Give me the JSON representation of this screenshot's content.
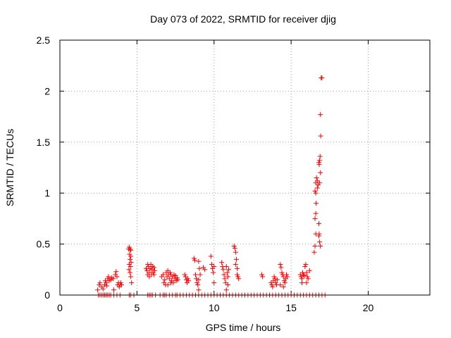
{
  "chart_data": {
    "type": "scatter",
    "title": "Day 073 of 2022, SRMTID for receiver djig",
    "xlabel": "GPS time / hours",
    "ylabel": "SRMTID / TECUs",
    "xlim": [
      0,
      24
    ],
    "ylim": [
      0,
      2.5
    ],
    "xticks": [
      0,
      5,
      10,
      15,
      20
    ],
    "xtick_labels": [
      "0",
      "5",
      "10",
      "15",
      "20"
    ],
    "yticks": [
      0,
      0.5,
      1,
      1.5,
      2,
      2.5
    ],
    "ytick_labels": [
      "0",
      "0.5",
      "1",
      "1.5",
      "2",
      "2.5"
    ],
    "grid": true,
    "marker": "+",
    "color": "#ff0000",
    "series": [
      {
        "name": "SRMTID",
        "points": [
          [
            2.5,
            0
          ],
          [
            2.6,
            0
          ],
          [
            2.7,
            0
          ],
          [
            2.8,
            0
          ],
          [
            2.9,
            0
          ],
          [
            3.0,
            0
          ],
          [
            3.1,
            0
          ],
          [
            3.2,
            0
          ],
          [
            3.3,
            0
          ],
          [
            3.5,
            0
          ],
          [
            3.7,
            0
          ],
          [
            3.9,
            0
          ],
          [
            4.5,
            0
          ],
          [
            4.6,
            0
          ],
          [
            4.8,
            0
          ],
          [
            5.7,
            0
          ],
          [
            5.8,
            0
          ],
          [
            5.9,
            0
          ],
          [
            6.0,
            0
          ],
          [
            6.2,
            0
          ],
          [
            6.5,
            0
          ],
          [
            6.7,
            0
          ],
          [
            6.8,
            0
          ],
          [
            6.9,
            0
          ],
          [
            7.1,
            0
          ],
          [
            7.3,
            0
          ],
          [
            7.5,
            0
          ],
          [
            7.6,
            0
          ],
          [
            7.8,
            0
          ],
          [
            8.0,
            0
          ],
          [
            8.2,
            0
          ],
          [
            8.4,
            0
          ],
          [
            8.6,
            0
          ],
          [
            8.8,
            0
          ],
          [
            9.0,
            0
          ],
          [
            9.2,
            0
          ],
          [
            9.4,
            0
          ],
          [
            9.6,
            0
          ],
          [
            9.8,
            0
          ],
          [
            10.0,
            0
          ],
          [
            10.2,
            0
          ],
          [
            10.4,
            0
          ],
          [
            10.6,
            0
          ],
          [
            10.8,
            0
          ],
          [
            11.0,
            0
          ],
          [
            11.2,
            0
          ],
          [
            11.4,
            0
          ],
          [
            11.6,
            0
          ],
          [
            11.8,
            0
          ],
          [
            12.0,
            0
          ],
          [
            12.2,
            0
          ],
          [
            12.4,
            0
          ],
          [
            12.6,
            0
          ],
          [
            12.8,
            0
          ],
          [
            13.0,
            0
          ],
          [
            13.2,
            0
          ],
          [
            13.4,
            0
          ],
          [
            13.6,
            0
          ],
          [
            13.8,
            0
          ],
          [
            14.0,
            0
          ],
          [
            14.2,
            0
          ],
          [
            14.4,
            0
          ],
          [
            14.6,
            0
          ],
          [
            14.8,
            0
          ],
          [
            15.0,
            0
          ],
          [
            15.2,
            0
          ],
          [
            15.4,
            0
          ],
          [
            15.6,
            0
          ],
          [
            15.8,
            0
          ],
          [
            16.0,
            0
          ],
          [
            16.2,
            0
          ],
          [
            16.4,
            0
          ],
          [
            16.6,
            0
          ],
          [
            16.8,
            0
          ],
          [
            17.0,
            0
          ],
          [
            17.2,
            0
          ],
          [
            2.45,
            0.05
          ],
          [
            2.55,
            0.1
          ],
          [
            2.6,
            0.12
          ],
          [
            2.7,
            0.08
          ],
          [
            2.8,
            0.06
          ],
          [
            2.9,
            0.1
          ],
          [
            2.95,
            0.14
          ],
          [
            3.0,
            0.12
          ],
          [
            3.05,
            0.09
          ],
          [
            3.1,
            0.16
          ],
          [
            3.15,
            0.18
          ],
          [
            3.2,
            0.14
          ],
          [
            3.3,
            0.15
          ],
          [
            3.35,
            0.17
          ],
          [
            3.45,
            0.16
          ],
          [
            3.5,
            0.05
          ],
          [
            3.6,
            0.2
          ],
          [
            3.65,
            0.23
          ],
          [
            3.7,
            0.18
          ],
          [
            3.75,
            0.1
          ],
          [
            3.8,
            0.12
          ],
          [
            3.85,
            0.08
          ],
          [
            3.9,
            0.1
          ],
          [
            3.95,
            0.12
          ],
          [
            4.0,
            0.1
          ],
          [
            4.45,
            0.45
          ],
          [
            4.5,
            0.47
          ],
          [
            4.52,
            0.4
          ],
          [
            4.55,
            0.35
          ],
          [
            4.5,
            0.3
          ],
          [
            4.48,
            0.25
          ],
          [
            4.55,
            0.22
          ],
          [
            4.6,
            0.44
          ],
          [
            4.6,
            0.38
          ],
          [
            4.62,
            0.32
          ],
          [
            4.58,
            0.28
          ],
          [
            4.6,
            0.18
          ],
          [
            4.65,
            0.12
          ],
          [
            4.55,
            0.45
          ],
          [
            5.6,
            0.26
          ],
          [
            5.65,
            0.24
          ],
          [
            5.7,
            0.3
          ],
          [
            5.75,
            0.28
          ],
          [
            5.8,
            0.22
          ],
          [
            5.85,
            0.26
          ],
          [
            5.9,
            0.3
          ],
          [
            5.95,
            0.25
          ],
          [
            6.0,
            0.28
          ],
          [
            6.05,
            0.22
          ],
          [
            6.1,
            0.27
          ],
          [
            6.15,
            0.24
          ],
          [
            5.7,
            0.2
          ],
          [
            5.8,
            0.18
          ],
          [
            5.95,
            0.2
          ],
          [
            6.1,
            0.2
          ],
          [
            6.6,
            0.18
          ],
          [
            6.7,
            0.2
          ],
          [
            6.8,
            0.15
          ],
          [
            6.85,
            0.1
          ],
          [
            6.9,
            0.22
          ],
          [
            6.95,
            0.18
          ],
          [
            7.0,
            0.24
          ],
          [
            7.05,
            0.2
          ],
          [
            7.1,
            0.16
          ],
          [
            7.15,
            0.22
          ],
          [
            7.2,
            0.2
          ],
          [
            7.25,
            0.14
          ],
          [
            7.3,
            0.18
          ],
          [
            7.35,
            0.12
          ],
          [
            7.4,
            0.2
          ],
          [
            7.45,
            0.16
          ],
          [
            7.5,
            0.19
          ],
          [
            7.55,
            0.14
          ],
          [
            7.6,
            0.17
          ],
          [
            7.65,
            0.15
          ],
          [
            6.75,
            0.12
          ],
          [
            7.0,
            0.1
          ],
          [
            7.2,
            0.12
          ],
          [
            8.1,
            0.2
          ],
          [
            8.15,
            0.18
          ],
          [
            8.2,
            0.15
          ],
          [
            8.25,
            0.12
          ],
          [
            8.3,
            0.16
          ],
          [
            8.35,
            0.14
          ],
          [
            8.7,
            0.36
          ],
          [
            8.75,
            0.34
          ],
          [
            8.8,
            0.2
          ],
          [
            8.85,
            0.16
          ],
          [
            8.9,
            0.12
          ],
          [
            8.95,
            0.1
          ],
          [
            9.0,
            0.33
          ],
          [
            9.05,
            0.26
          ],
          [
            9.1,
            0.2
          ],
          [
            9.0,
            0.05
          ],
          [
            9.0,
            0.15
          ],
          [
            9.3,
            0.27
          ],
          [
            9.4,
            0.25
          ],
          [
            9.8,
            0.38
          ],
          [
            9.85,
            0.3
          ],
          [
            9.9,
            0.26
          ],
          [
            9.95,
            0.22
          ],
          [
            10.0,
            0.28
          ],
          [
            10.0,
            0.12
          ],
          [
            10.5,
            0.32
          ],
          [
            10.55,
            0.28
          ],
          [
            10.6,
            0.25
          ],
          [
            10.65,
            0.2
          ],
          [
            10.7,
            0.16
          ],
          [
            10.75,
            0.12
          ],
          [
            10.8,
            0.28
          ],
          [
            10.85,
            0.22
          ],
          [
            10.9,
            0.18
          ],
          [
            10.95,
            0.25
          ],
          [
            10.8,
            0.05
          ],
          [
            10.9,
            0.1
          ],
          [
            11.3,
            0.48
          ],
          [
            11.35,
            0.46
          ],
          [
            11.4,
            0.42
          ],
          [
            11.45,
            0.35
          ],
          [
            11.4,
            0.3
          ],
          [
            11.5,
            0.26
          ],
          [
            11.5,
            0.2
          ],
          [
            11.55,
            0.18
          ],
          [
            11.6,
            0.16
          ],
          [
            13.1,
            0.2
          ],
          [
            13.15,
            0.18
          ],
          [
            13.7,
            0.12
          ],
          [
            13.75,
            0.1
          ],
          [
            13.8,
            0.08
          ],
          [
            13.85,
            0.14
          ],
          [
            13.9,
            0.18
          ],
          [
            13.95,
            0.16
          ],
          [
            14.0,
            0.12
          ],
          [
            14.05,
            0.1
          ],
          [
            14.1,
            0.15
          ],
          [
            14.3,
            0.3
          ],
          [
            14.35,
            0.27
          ],
          [
            14.4,
            0.22
          ],
          [
            14.45,
            0.2
          ],
          [
            14.5,
            0.18
          ],
          [
            14.55,
            0.14
          ],
          [
            14.6,
            0.12
          ],
          [
            14.65,
            0.16
          ],
          [
            14.7,
            0.2
          ],
          [
            14.75,
            0.18
          ],
          [
            14.3,
            0.1
          ],
          [
            14.5,
            0.08
          ],
          [
            15.6,
            0.2
          ],
          [
            15.65,
            0.18
          ],
          [
            15.7,
            0.16
          ],
          [
            15.75,
            0.22
          ],
          [
            15.8,
            0.2
          ],
          [
            15.85,
            0.19
          ],
          [
            15.9,
            0.28
          ],
          [
            15.95,
            0.3
          ],
          [
            16.0,
            0.22
          ],
          [
            16.05,
            0.18
          ],
          [
            16.1,
            0.16
          ],
          [
            16.2,
            0.24
          ],
          [
            15.7,
            0.12
          ],
          [
            16.0,
            0.12
          ],
          [
            16.5,
            0.42
          ],
          [
            16.55,
            0.48
          ],
          [
            16.6,
            0.6
          ],
          [
            16.55,
            0.75
          ],
          [
            16.6,
            0.8
          ],
          [
            16.62,
            0.9
          ],
          [
            16.6,
            1.0
          ],
          [
            16.55,
            1.02
          ],
          [
            16.6,
            1.1
          ],
          [
            16.65,
            1.15
          ],
          [
            16.7,
            1.12
          ],
          [
            16.75,
            1.08
          ],
          [
            16.7,
            1.05
          ],
          [
            16.8,
            1.3
          ],
          [
            16.82,
            1.28
          ],
          [
            16.85,
            1.32
          ],
          [
            16.88,
            1.36
          ],
          [
            16.9,
            1.2
          ],
          [
            16.85,
            1.1
          ],
          [
            16.8,
            0.7
          ],
          [
            16.82,
            0.6
          ],
          [
            16.85,
            0.52
          ],
          [
            16.9,
            0.48
          ],
          [
            16.9,
            1.77
          ],
          [
            16.92,
            1.56
          ],
          [
            16.95,
            2.13
          ],
          [
            17.0,
            2.13
          ],
          [
            16.8,
            0.58
          ]
        ]
      }
    ]
  }
}
